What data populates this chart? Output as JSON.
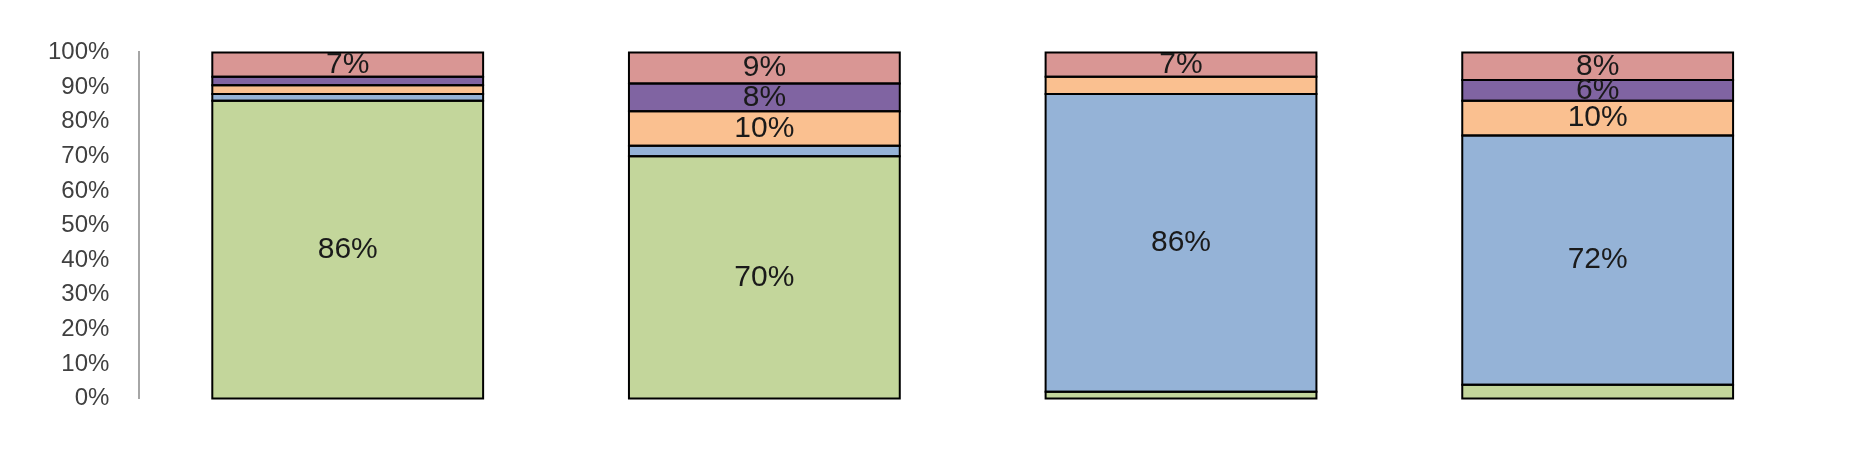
{
  "chart_data": {
    "type": "bar",
    "stacked": true,
    "categories": [
      null,
      null,
      null,
      null
    ],
    "series": [
      {
        "color": "#c3d69b",
        "values": [
          86,
          70,
          2,
          4
        ],
        "value_labels": [
          "86%",
          "70%",
          null,
          null
        ]
      },
      {
        "color": "#95b3d7",
        "values": [
          2,
          3,
          86,
          72
        ],
        "value_labels": [
          null,
          null,
          "86%",
          "72%"
        ]
      },
      {
        "color": "#fac090",
        "values": [
          2.5,
          10,
          5,
          10
        ],
        "value_labels": [
          null,
          "10%",
          null,
          "10%"
        ]
      },
      {
        "color": "#8064a2",
        "values": [
          2.5,
          8,
          0,
          6
        ],
        "value_labels": [
          null,
          "8%",
          null,
          "6%"
        ]
      },
      {
        "color": "#d99694",
        "values": [
          7,
          9,
          7,
          8
        ],
        "value_labels": [
          "7%",
          "9%",
          "7%",
          "8%"
        ]
      }
    ],
    "ylim": [
      0,
      100
    ],
    "yticks": [
      {
        "value": 0,
        "label": "0%"
      },
      {
        "value": 10,
        "label": "10%"
      },
      {
        "value": 20,
        "label": "20%"
      },
      {
        "value": 30,
        "label": "30%"
      },
      {
        "value": 40,
        "label": "40%"
      },
      {
        "value": 50,
        "label": "50%"
      },
      {
        "value": 60,
        "label": "60%"
      },
      {
        "value": 70,
        "label": "70%"
      },
      {
        "value": 80,
        "label": "80%"
      },
      {
        "value": 90,
        "label": "90%"
      },
      {
        "value": 100,
        "label": "100%"
      }
    ],
    "tick_labels": "y",
    "grid": false,
    "legend": false
  }
}
